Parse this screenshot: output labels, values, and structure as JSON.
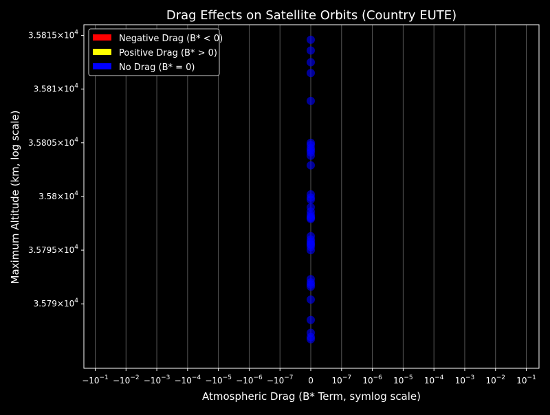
{
  "chart_data": {
    "type": "scatter",
    "title": "Drag Effects on Satellite Orbits (Country EUTE)",
    "xlabel": "Atmospheric Drag (B* Term, symlog scale)",
    "ylabel": "Maximum Altitude (km, log scale)",
    "x_scale": "symlog",
    "y_scale": "log",
    "ylim": [
      35784,
      35816
    ],
    "grid": "x-only",
    "legend_placement": "top-left",
    "x_ticks": [
      {
        "base": "−10",
        "exp": "−1"
      },
      {
        "base": "−10",
        "exp": "−2"
      },
      {
        "base": "−10",
        "exp": "−3"
      },
      {
        "base": "−10",
        "exp": "−4"
      },
      {
        "base": "−10",
        "exp": "−5"
      },
      {
        "base": "−10",
        "exp": "−6"
      },
      {
        "base": "−10",
        "exp": "−7"
      },
      {
        "base": "0",
        "exp": ""
      },
      {
        "base": "10",
        "exp": "−7"
      },
      {
        "base": "10",
        "exp": "−6"
      },
      {
        "base": "10",
        "exp": "−5"
      },
      {
        "base": "10",
        "exp": "−4"
      },
      {
        "base": "10",
        "exp": "−3"
      },
      {
        "base": "10",
        "exp": "−2"
      },
      {
        "base": "10",
        "exp": "−1"
      }
    ],
    "y_ticks": [
      {
        "value": 35790,
        "mantissa": "3.579",
        "exp": "4"
      },
      {
        "value": 35795,
        "mantissa": "3.5795",
        "exp": "4"
      },
      {
        "value": 35800,
        "mantissa": "3.58",
        "exp": "4"
      },
      {
        "value": 35805,
        "mantissa": "3.5805",
        "exp": "4"
      },
      {
        "value": 35810,
        "mantissa": "3.581",
        "exp": "4"
      },
      {
        "value": 35815,
        "mantissa": "3.5815",
        "exp": "4"
      }
    ],
    "legend": [
      {
        "label": "Negative Drag (B* < 0)",
        "color": "#ff0000"
      },
      {
        "label": "Positive Drag (B* > 0)",
        "color": "#ffff00"
      },
      {
        "label": "No Drag (B* = 0)",
        "color": "#0000ff"
      }
    ],
    "series": [
      {
        "color": "#0000ff",
        "x": [
          0,
          0,
          0,
          0,
          0,
          0,
          0,
          0,
          0,
          0,
          0,
          0,
          0,
          0,
          0,
          0,
          0,
          0,
          0,
          0,
          0,
          0,
          0,
          0,
          0,
          0,
          0,
          0,
          0,
          0,
          0,
          0,
          0,
          0,
          0,
          0,
          0
        ],
        "y": [
          35814.6,
          35813.6,
          35812.5,
          35811.5,
          35808.9,
          35805.0,
          35804.8,
          35804.5,
          35804.1,
          35803.8,
          35802.9,
          35800.2,
          35799.9,
          35799.0,
          35798.6,
          35798.3,
          35798.1,
          35797.9,
          35796.3,
          35796.0,
          35795.8,
          35795.6,
          35795.5,
          35795.0,
          35792.3,
          35792.0,
          35791.8,
          35791.6,
          35790.4,
          35788.5,
          35787.3,
          35786.9,
          35786.7,
          35795.3,
          35798.0,
          35799.7,
          35804.3
        ]
      }
    ]
  }
}
